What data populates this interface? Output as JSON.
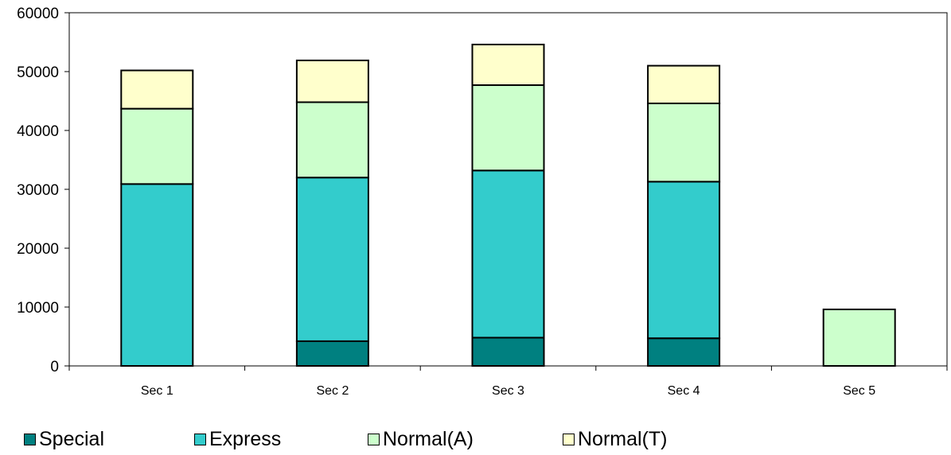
{
  "chart_data": {
    "type": "bar",
    "stacked": true,
    "categories": [
      "Sec 1",
      "Sec 2",
      "Sec 3",
      "Sec 4",
      "Sec 5"
    ],
    "series": [
      {
        "name": "Special",
        "color": "#008080",
        "values": [
          0,
          4200,
          4800,
          4700,
          0
        ]
      },
      {
        "name": "Express",
        "color": "#33CCCC",
        "values": [
          30900,
          27800,
          28400,
          26600,
          0
        ]
      },
      {
        "name": "Normal(A)",
        "color": "#CCFFCC",
        "values": [
          12800,
          12800,
          14500,
          13300,
          9600
        ]
      },
      {
        "name": "Normal(T)",
        "color": "#FFFFCC",
        "values": [
          6500,
          7100,
          6900,
          6400,
          0
        ]
      }
    ],
    "yticks": [
      "0",
      "10000",
      "20000",
      "30000",
      "40000",
      "50000",
      "60000"
    ],
    "ylim": [
      0,
      60000
    ],
    "legend_position": "bottom",
    "grid": false
  }
}
